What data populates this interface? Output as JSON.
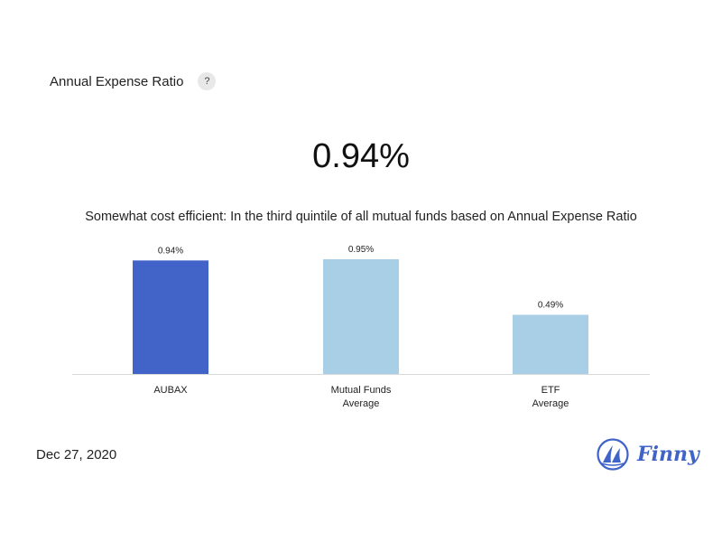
{
  "header": {
    "title": "Annual Expense Ratio",
    "help_label": "?"
  },
  "value": "0.94%",
  "subtitle": "Somewhat cost efficient: In the third quintile of all mutual funds based on Annual Expense Ratio",
  "chart_data": {
    "type": "bar",
    "categories": [
      [
        "AUBAX"
      ],
      [
        "Mutual Funds",
        "Average"
      ],
      [
        "ETF",
        "Average"
      ]
    ],
    "values": [
      0.94,
      0.95,
      0.49
    ],
    "value_labels": [
      "0.94%",
      "0.95%",
      "0.49%"
    ],
    "colors": [
      "#4263c8",
      "#a8cfe6",
      "#a8cfe6"
    ],
    "unit": "%",
    "ylim": [
      0,
      0.95
    ],
    "grid": false,
    "legend": "none",
    "axis_color": "#d9d9d9"
  },
  "footer": {
    "date": "Dec 27, 2020",
    "brand": "Finny",
    "brand_icon": "sailboat-icon",
    "brand_color": "#3f63c7"
  }
}
